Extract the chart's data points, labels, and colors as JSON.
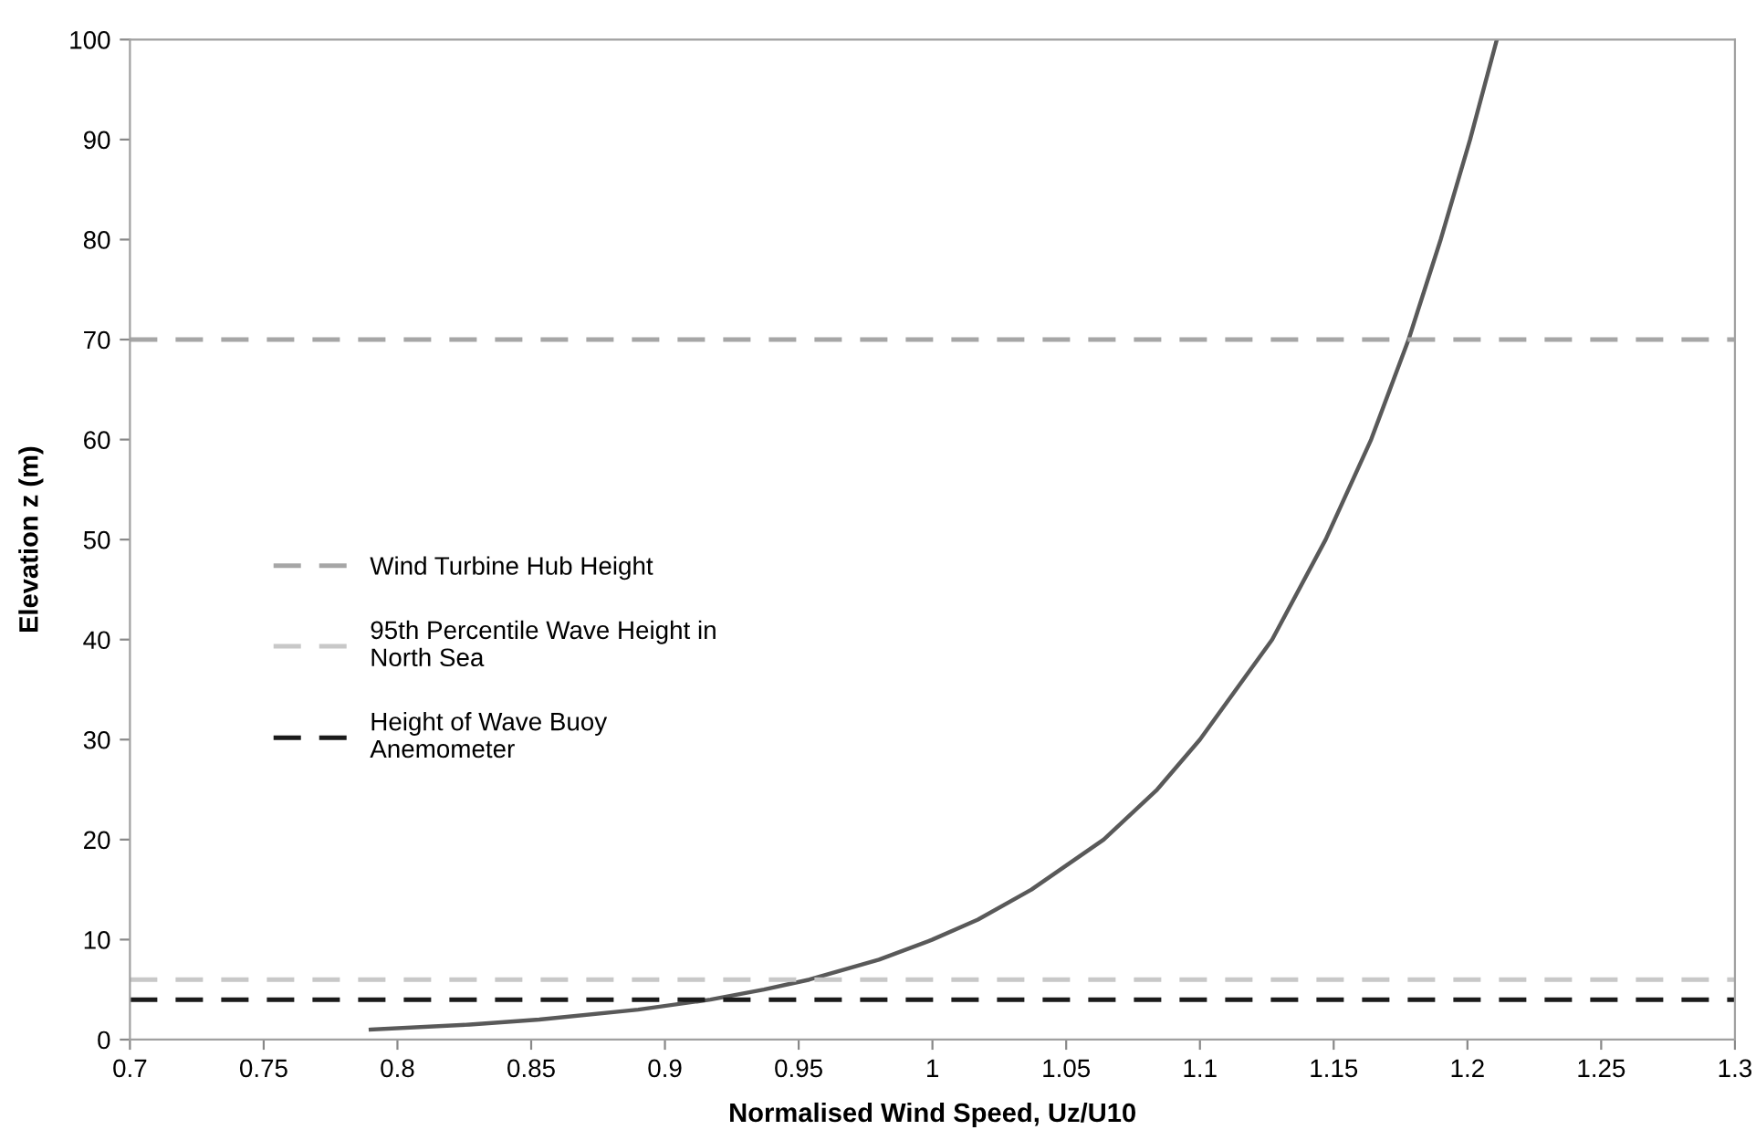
{
  "chart_data": {
    "type": "line",
    "xlabel": "Normalised Wind Speed, Uz/U10",
    "ylabel": "Elevation z (m)",
    "series": [
      {
        "color": "#595959",
        "x": [
          0.79,
          0.827,
          0.853,
          0.89,
          0.917,
          0.937,
          0.954,
          0.98,
          1.0,
          1.017,
          1.037,
          1.064,
          1.084,
          1.1,
          1.127,
          1.147,
          1.164,
          1.178,
          1.19,
          1.201,
          1.211
        ],
        "values": [
          1,
          1.5,
          2,
          3,
          4,
          5,
          6,
          8,
          10,
          12,
          15,
          20,
          25,
          30,
          40,
          50,
          60,
          70,
          80,
          90,
          100
        ]
      }
    ],
    "xlim": [
      0.7,
      1.3
    ],
    "xticks": [
      0.7,
      0.75,
      0.8,
      0.85,
      0.9,
      0.95,
      1,
      1.05,
      1.1,
      1.15,
      1.2,
      1.25,
      1.3
    ],
    "ylim": [
      0,
      100
    ],
    "yticks": [
      0,
      10,
      20,
      30,
      40,
      50,
      60,
      70,
      80,
      90,
      100
    ],
    "ref_lines": [
      {
        "axis": "y",
        "value": 70,
        "label": "Wind Turbine Hub Height",
        "color": "#a6a6a6",
        "line_style": "dashed"
      },
      {
        "axis": "y",
        "value": 6,
        "label": "95th Percentile Wave Height in\nNorth Sea",
        "color": "#c8c8c8",
        "line_style": "dashed"
      },
      {
        "axis": "y",
        "value": 4,
        "label": "Height of Wave Buoy\nAnemometer",
        "color": "#1a1a1a",
        "line_style": "dashed"
      }
    ],
    "grid": false,
    "legend": "left",
    "marker": "none",
    "line_style": "solid"
  }
}
